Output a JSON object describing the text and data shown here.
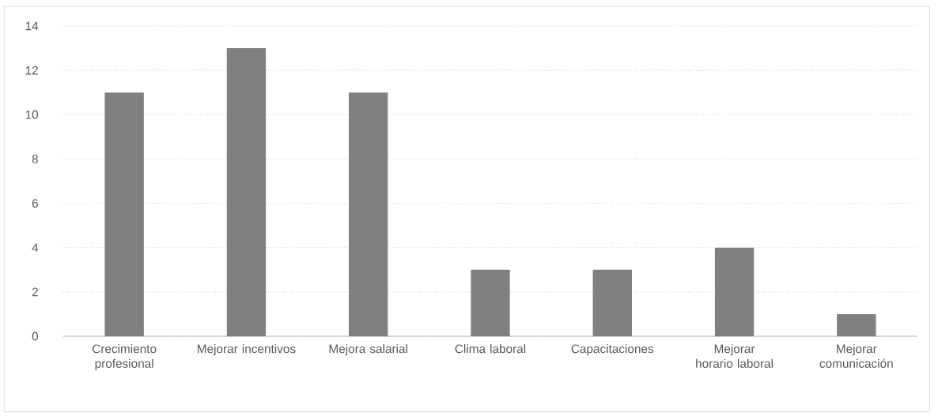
{
  "chart_data": {
    "type": "bar",
    "categories": [
      "Crecimiento profesional",
      "Mejorar incentivos",
      "Mejora salarial",
      "Clima laboral",
      "Capacitaciones",
      "Mejorar horario laboral",
      "Mejorar comunicación"
    ],
    "values": [
      11,
      13,
      11,
      3,
      3,
      4,
      1
    ],
    "color": "#808080",
    "ylim": [
      0,
      14
    ],
    "yticks": [
      0,
      2,
      4,
      6,
      8,
      10,
      12,
      14
    ],
    "grid": "y"
  }
}
